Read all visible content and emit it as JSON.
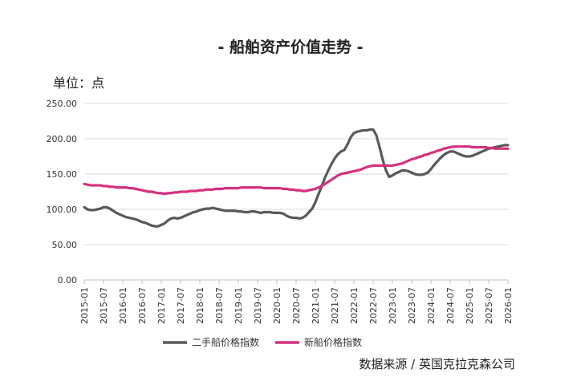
{
  "chart_data": {
    "type": "line",
    "title": "- 船舶资产价值走势 -",
    "unit_label": "单位：点",
    "source": "数据来源 / 英国克拉克森公司",
    "ylim": [
      0,
      250
    ],
    "y_ticks": [
      "0.00",
      "50.00",
      "100.00",
      "150.00",
      "200.00",
      "250.00"
    ],
    "x_start": "2015-01",
    "x_end": "2026-01",
    "x_ticks": [
      "2015-01",
      "2015-07",
      "2016-01",
      "2016-07",
      "2017-01",
      "2017-07",
      "2018-01",
      "2018-07",
      "2019-01",
      "2019-07",
      "2020-01",
      "2020-07",
      "2021-01",
      "2021-07",
      "2022-01",
      "2022-07",
      "2023-01",
      "2023-07",
      "2024-01",
      "2024-07",
      "2025-01",
      "2025-07",
      "2026-01"
    ],
    "grid": true,
    "legend_position": "bottom",
    "colors": {
      "second_hand": "#595959",
      "newbuild": "#d6307e"
    },
    "series": [
      {
        "name": "二手船价格指数",
        "color": "#595959",
        "points": [
          [
            "2015-01",
            103
          ],
          [
            "2015-02",
            100
          ],
          [
            "2015-03",
            99
          ],
          [
            "2015-04",
            99
          ],
          [
            "2015-05",
            100
          ],
          [
            "2015-06",
            101
          ],
          [
            "2015-07",
            103
          ],
          [
            "2015-08",
            103
          ],
          [
            "2015-09",
            101
          ],
          [
            "2015-10",
            98
          ],
          [
            "2015-11",
            95
          ],
          [
            "2015-12",
            93
          ],
          [
            "2016-01",
            91
          ],
          [
            "2016-02",
            89
          ],
          [
            "2016-03",
            88
          ],
          [
            "2016-04",
            87
          ],
          [
            "2016-05",
            86
          ],
          [
            "2016-06",
            84
          ],
          [
            "2016-07",
            82
          ],
          [
            "2016-08",
            81
          ],
          [
            "2016-09",
            79
          ],
          [
            "2016-10",
            77
          ],
          [
            "2016-11",
            76
          ],
          [
            "2016-12",
            76
          ],
          [
            "2017-01",
            78
          ],
          [
            "2017-02",
            80
          ],
          [
            "2017-03",
            84
          ],
          [
            "2017-04",
            87
          ],
          [
            "2017-05",
            88
          ],
          [
            "2017-06",
            87
          ],
          [
            "2017-07",
            88
          ],
          [
            "2017-08",
            90
          ],
          [
            "2017-09",
            92
          ],
          [
            "2017-10",
            94
          ],
          [
            "2017-11",
            96
          ],
          [
            "2017-12",
            97
          ],
          [
            "2018-01",
            99
          ],
          [
            "2018-02",
            100
          ],
          [
            "2018-03",
            101
          ],
          [
            "2018-04",
            101
          ],
          [
            "2018-05",
            102
          ],
          [
            "2018-06",
            101
          ],
          [
            "2018-07",
            100
          ],
          [
            "2018-08",
            99
          ],
          [
            "2018-09",
            98
          ],
          [
            "2018-10",
            98
          ],
          [
            "2018-11",
            98
          ],
          [
            "2018-12",
            98
          ],
          [
            "2019-01",
            97
          ],
          [
            "2019-02",
            97
          ],
          [
            "2019-03",
            96
          ],
          [
            "2019-04",
            96
          ],
          [
            "2019-05",
            97
          ],
          [
            "2019-06",
            97
          ],
          [
            "2019-07",
            96
          ],
          [
            "2019-08",
            95
          ],
          [
            "2019-09",
            96
          ],
          [
            "2019-10",
            96
          ],
          [
            "2019-11",
            96
          ],
          [
            "2019-12",
            95
          ],
          [
            "2020-01",
            95
          ],
          [
            "2020-02",
            95
          ],
          [
            "2020-03",
            94
          ],
          [
            "2020-04",
            91
          ],
          [
            "2020-05",
            89
          ],
          [
            "2020-06",
            88
          ],
          [
            "2020-07",
            88
          ],
          [
            "2020-08",
            87
          ],
          [
            "2020-09",
            88
          ],
          [
            "2020-10",
            91
          ],
          [
            "2020-11",
            96
          ],
          [
            "2020-12",
            101
          ],
          [
            "2021-01",
            110
          ],
          [
            "2021-02",
            122
          ],
          [
            "2021-03",
            133
          ],
          [
            "2021-04",
            145
          ],
          [
            "2021-05",
            155
          ],
          [
            "2021-06",
            164
          ],
          [
            "2021-07",
            172
          ],
          [
            "2021-08",
            178
          ],
          [
            "2021-09",
            182
          ],
          [
            "2021-10",
            184
          ],
          [
            "2021-11",
            192
          ],
          [
            "2021-12",
            202
          ],
          [
            "2022-01",
            208
          ],
          [
            "2022-02",
            210
          ],
          [
            "2022-03",
            211
          ],
          [
            "2022-04",
            212
          ],
          [
            "2022-05",
            212
          ],
          [
            "2022-06",
            213
          ],
          [
            "2022-07",
            213
          ],
          [
            "2022-08",
            205
          ],
          [
            "2022-09",
            188
          ],
          [
            "2022-10",
            170
          ],
          [
            "2022-11",
            155
          ],
          [
            "2022-12",
            146
          ],
          [
            "2023-01",
            148
          ],
          [
            "2023-02",
            151
          ],
          [
            "2023-03",
            153
          ],
          [
            "2023-04",
            155
          ],
          [
            "2023-05",
            155
          ],
          [
            "2023-06",
            154
          ],
          [
            "2023-07",
            152
          ],
          [
            "2023-08",
            150
          ],
          [
            "2023-09",
            149
          ],
          [
            "2023-10",
            149
          ],
          [
            "2023-11",
            150
          ],
          [
            "2023-12",
            152
          ],
          [
            "2024-01",
            157
          ],
          [
            "2024-02",
            163
          ],
          [
            "2024-03",
            168
          ],
          [
            "2024-04",
            173
          ],
          [
            "2024-05",
            177
          ],
          [
            "2024-06",
            180
          ],
          [
            "2024-07",
            182
          ],
          [
            "2024-08",
            182
          ],
          [
            "2024-09",
            180
          ],
          [
            "2024-10",
            178
          ],
          [
            "2024-11",
            176
          ],
          [
            "2024-12",
            175
          ],
          [
            "2025-01",
            175
          ],
          [
            "2025-02",
            176
          ],
          [
            "2025-03",
            178
          ],
          [
            "2025-04",
            180
          ],
          [
            "2025-05",
            182
          ],
          [
            "2025-06",
            184
          ],
          [
            "2025-07",
            186
          ],
          [
            "2025-08",
            187
          ],
          [
            "2025-09",
            188
          ],
          [
            "2025-10",
            189
          ],
          [
            "2025-11",
            190
          ],
          [
            "2025-12",
            191
          ],
          [
            "2026-01",
            191
          ]
        ]
      },
      {
        "name": "新船价格指数",
        "color": "#d6307e",
        "points": [
          [
            "2015-01",
            136
          ],
          [
            "2015-02",
            135
          ],
          [
            "2015-03",
            134
          ],
          [
            "2015-04",
            134
          ],
          [
            "2015-05",
            134
          ],
          [
            "2015-06",
            134
          ],
          [
            "2015-07",
            133
          ],
          [
            "2015-08",
            133
          ],
          [
            "2015-09",
            132
          ],
          [
            "2015-10",
            132
          ],
          [
            "2015-11",
            131
          ],
          [
            "2015-12",
            131
          ],
          [
            "2016-01",
            131
          ],
          [
            "2016-02",
            131
          ],
          [
            "2016-03",
            130
          ],
          [
            "2016-04",
            130
          ],
          [
            "2016-05",
            129
          ],
          [
            "2016-06",
            128
          ],
          [
            "2016-07",
            127
          ],
          [
            "2016-08",
            126
          ],
          [
            "2016-09",
            125
          ],
          [
            "2016-10",
            125
          ],
          [
            "2016-11",
            124
          ],
          [
            "2016-12",
            123
          ],
          [
            "2017-01",
            123
          ],
          [
            "2017-02",
            122
          ],
          [
            "2017-03",
            123
          ],
          [
            "2017-04",
            123
          ],
          [
            "2017-05",
            124
          ],
          [
            "2017-06",
            124
          ],
          [
            "2017-07",
            125
          ],
          [
            "2017-08",
            125
          ],
          [
            "2017-09",
            125
          ],
          [
            "2017-10",
            126
          ],
          [
            "2017-11",
            126
          ],
          [
            "2017-12",
            126
          ],
          [
            "2018-01",
            127
          ],
          [
            "2018-02",
            127
          ],
          [
            "2018-03",
            128
          ],
          [
            "2018-04",
            128
          ],
          [
            "2018-05",
            128
          ],
          [
            "2018-06",
            129
          ],
          [
            "2018-07",
            129
          ],
          [
            "2018-08",
            129
          ],
          [
            "2018-09",
            130
          ],
          [
            "2018-10",
            130
          ],
          [
            "2018-11",
            130
          ],
          [
            "2018-12",
            130
          ],
          [
            "2019-01",
            130
          ],
          [
            "2019-02",
            131
          ],
          [
            "2019-03",
            131
          ],
          [
            "2019-04",
            131
          ],
          [
            "2019-05",
            131
          ],
          [
            "2019-06",
            131
          ],
          [
            "2019-07",
            131
          ],
          [
            "2019-08",
            131
          ],
          [
            "2019-09",
            130
          ],
          [
            "2019-10",
            130
          ],
          [
            "2019-11",
            130
          ],
          [
            "2019-12",
            130
          ],
          [
            "2020-01",
            130
          ],
          [
            "2020-02",
            130
          ],
          [
            "2020-03",
            129
          ],
          [
            "2020-04",
            129
          ],
          [
            "2020-05",
            128
          ],
          [
            "2020-06",
            128
          ],
          [
            "2020-07",
            127
          ],
          [
            "2020-08",
            127
          ],
          [
            "2020-09",
            126
          ],
          [
            "2020-10",
            126
          ],
          [
            "2020-11",
            127
          ],
          [
            "2020-12",
            128
          ],
          [
            "2021-01",
            129
          ],
          [
            "2021-02",
            131
          ],
          [
            "2021-03",
            133
          ],
          [
            "2021-04",
            136
          ],
          [
            "2021-05",
            139
          ],
          [
            "2021-06",
            142
          ],
          [
            "2021-07",
            145
          ],
          [
            "2021-08",
            148
          ],
          [
            "2021-09",
            150
          ],
          [
            "2021-10",
            151
          ],
          [
            "2021-11",
            152
          ],
          [
            "2021-12",
            153
          ],
          [
            "2022-01",
            154
          ],
          [
            "2022-02",
            155
          ],
          [
            "2022-03",
            156
          ],
          [
            "2022-04",
            158
          ],
          [
            "2022-05",
            160
          ],
          [
            "2022-06",
            161
          ],
          [
            "2022-07",
            162
          ],
          [
            "2022-08",
            162
          ],
          [
            "2022-09",
            162
          ],
          [
            "2022-10",
            162
          ],
          [
            "2022-11",
            162
          ],
          [
            "2022-12",
            162
          ],
          [
            "2023-01",
            162
          ],
          [
            "2023-02",
            163
          ],
          [
            "2023-03",
            164
          ],
          [
            "2023-04",
            165
          ],
          [
            "2023-05",
            167
          ],
          [
            "2023-06",
            169
          ],
          [
            "2023-07",
            171
          ],
          [
            "2023-08",
            172
          ],
          [
            "2023-09",
            174
          ],
          [
            "2023-10",
            175
          ],
          [
            "2023-11",
            177
          ],
          [
            "2023-12",
            178
          ],
          [
            "2024-01",
            180
          ],
          [
            "2024-02",
            181
          ],
          [
            "2024-03",
            183
          ],
          [
            "2024-04",
            184
          ],
          [
            "2024-05",
            186
          ],
          [
            "2024-06",
            187
          ],
          [
            "2024-07",
            188
          ],
          [
            "2024-08",
            189
          ],
          [
            "2024-09",
            189
          ],
          [
            "2024-10",
            189
          ],
          [
            "2024-11",
            189
          ],
          [
            "2024-12",
            189
          ],
          [
            "2025-01",
            189
          ],
          [
            "2025-02",
            188
          ],
          [
            "2025-03",
            188
          ],
          [
            "2025-04",
            188
          ],
          [
            "2025-05",
            188
          ],
          [
            "2025-06",
            188
          ],
          [
            "2025-07",
            187
          ],
          [
            "2025-08",
            187
          ],
          [
            "2025-09",
            186
          ],
          [
            "2025-10",
            186
          ],
          [
            "2025-11",
            186
          ],
          [
            "2025-12",
            186
          ],
          [
            "2026-01",
            186
          ]
        ]
      }
    ]
  }
}
